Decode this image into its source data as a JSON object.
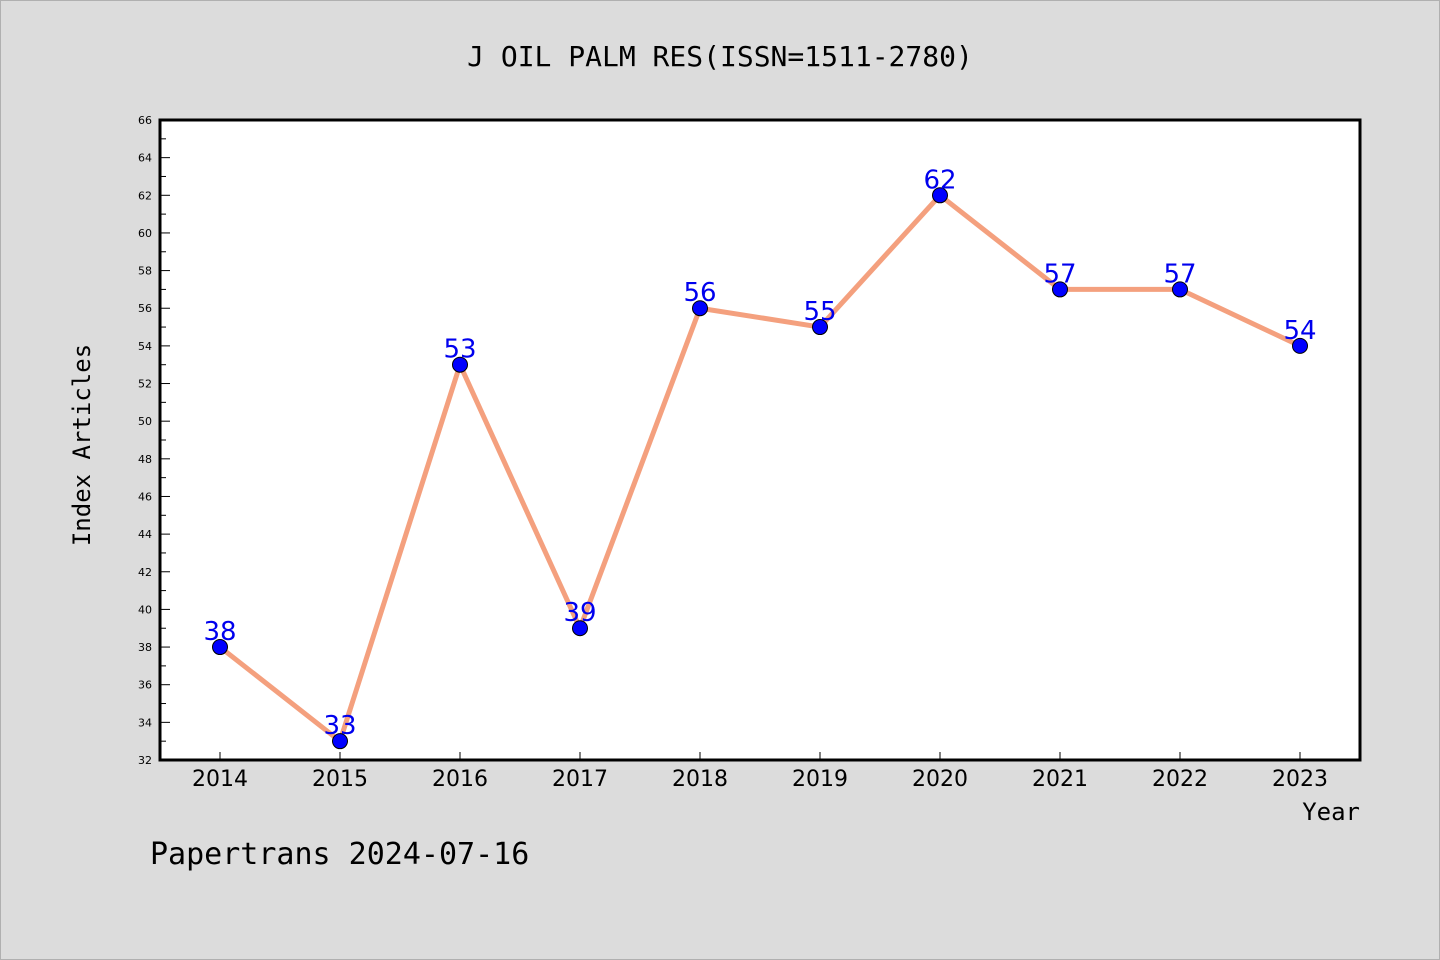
{
  "chart_data": {
    "type": "line",
    "title": "J OIL PALM RES(ISSN=1511-2780)",
    "xlabel": "Year",
    "ylabel": "Index Articles",
    "categories": [
      "2014",
      "2015",
      "2016",
      "2017",
      "2018",
      "2019",
      "2020",
      "2021",
      "2022",
      "2023"
    ],
    "series": [
      {
        "values": [
          38,
          33,
          53,
          39,
          56,
          55,
          62,
          57,
          57,
          54
        ]
      }
    ],
    "ylim": [
      32,
      66
    ],
    "ytick_step": 2,
    "grid": false,
    "line_color": "#f4a07e",
    "marker_color": "#0000ff",
    "label_color": "#0000ee"
  },
  "footer": "Papertrans 2024-07-16"
}
